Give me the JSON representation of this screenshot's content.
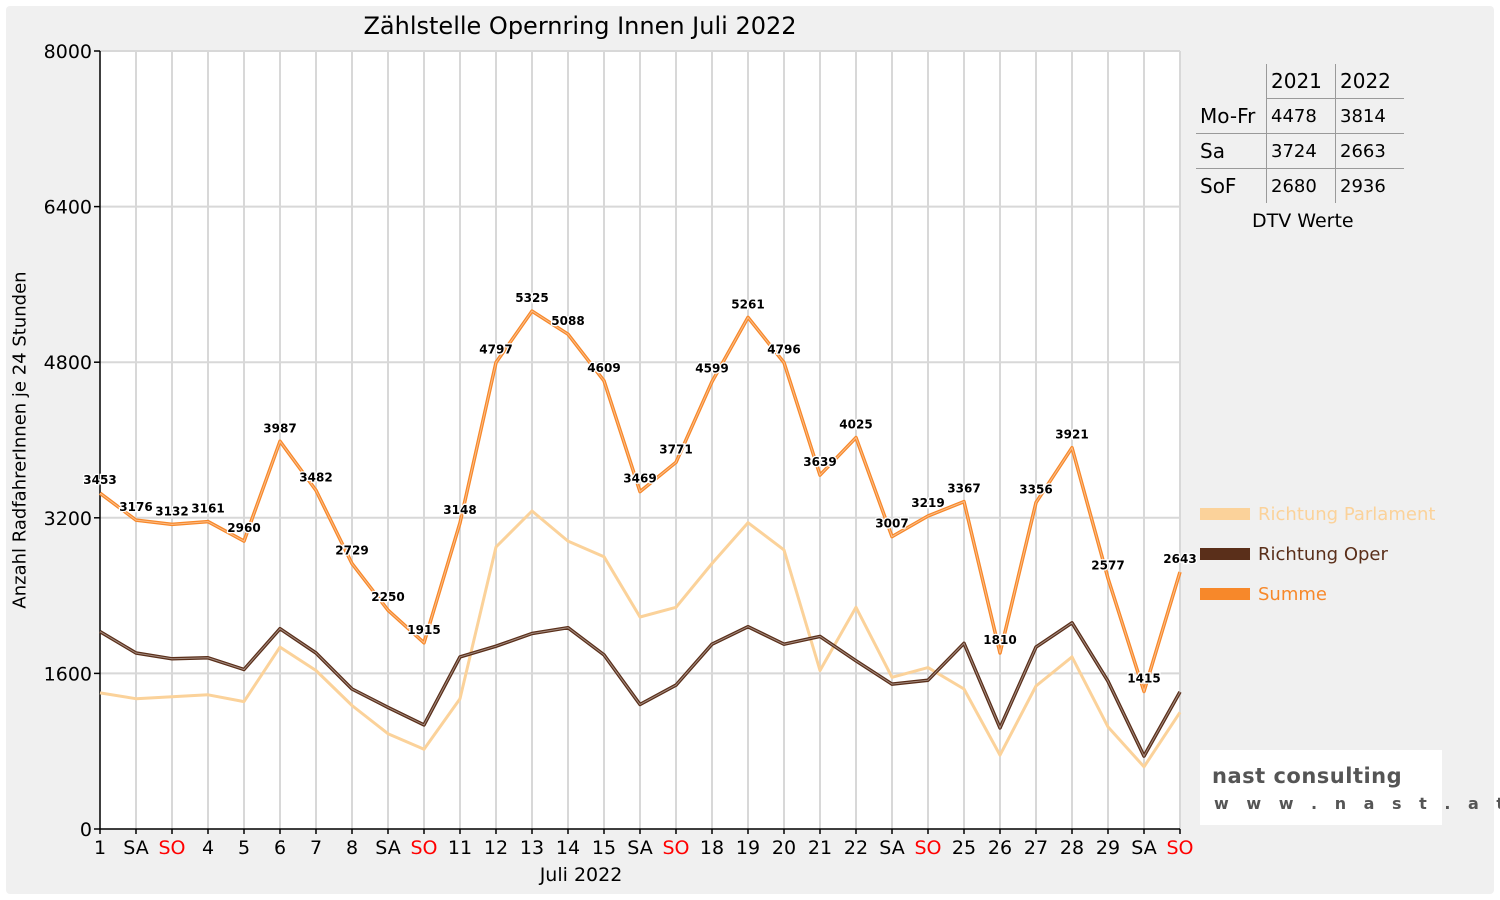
{
  "chart_data": {
    "type": "line",
    "title": "Zählstelle Opernring Innen Juli 2022",
    "xlabel": "Juli 2022",
    "ylabel": "Anzahl RadfahrerInnen je 24 Stunden",
    "ylim": [
      0,
      8000
    ],
    "yticks": [
      "0",
      "1600",
      "3200",
      "4800",
      "6400",
      "8000"
    ],
    "categories": [
      "1",
      "SA",
      "SO",
      "4",
      "5",
      "6",
      "7",
      "8",
      "SA",
      "SO",
      "11",
      "12",
      "13",
      "14",
      "15",
      "SA",
      "SO",
      "18",
      "19",
      "20",
      "21",
      "22",
      "SA",
      "SO",
      "25",
      "26",
      "27",
      "28",
      "29",
      "SA",
      "SO"
    ],
    "weekend_markers": {
      "SA": "#000000",
      "SO": "#ff0000"
    },
    "grid": true,
    "legend_position": "right",
    "series": [
      {
        "name": "Richtung Parlament",
        "color": "#fbd29a",
        "values": [
          1400,
          1340,
          1360,
          1380,
          1310,
          1870,
          1630,
          1270,
          980,
          820,
          1340,
          2900,
          3270,
          2960,
          2800,
          2180,
          2280,
          2730,
          3150,
          2870,
          1630,
          2280,
          1560,
          1660,
          1440,
          760,
          1470,
          1770,
          1050,
          640,
          1200
        ]
      },
      {
        "name": "Richtung Oper",
        "color": "#5a2f1a",
        "values": [
          2030,
          1810,
          1750,
          1760,
          1640,
          2060,
          1810,
          1440,
          1250,
          1070,
          1770,
          1880,
          2010,
          2070,
          1790,
          1280,
          1480,
          1900,
          2080,
          1900,
          1980,
          1730,
          1490,
          1530,
          1910,
          1040,
          1870,
          2120,
          1520,
          750,
          1410
        ]
      },
      {
        "name": "Summe",
        "color": "#f7882a",
        "values": [
          3453,
          3176,
          3132,
          3161,
          2960,
          3987,
          3482,
          2729,
          2250,
          1915,
          3148,
          4797,
          5325,
          5088,
          4609,
          3469,
          3771,
          4599,
          5261,
          4796,
          3639,
          4025,
          3007,
          3219,
          3367,
          1810,
          3356,
          3921,
          2577,
          1415,
          2643
        ],
        "labels": [
          "3453",
          "3176",
          "3132",
          "3161",
          "2960",
          "3987",
          "3482",
          "2729",
          "2250",
          "1915",
          "3148",
          "4797",
          "5325",
          "5088",
          "4609",
          "3469",
          "3771",
          "4599",
          "5261",
          "4796",
          "3639",
          "4025",
          "3007",
          "3219",
          "3367",
          "1810",
          "3356",
          "3921",
          "2577",
          "1415",
          "2643"
        ]
      }
    ]
  },
  "dtv_table": {
    "columns": [
      "2021",
      "2022"
    ],
    "rows": [
      {
        "label": "Mo-Fr",
        "v2021": "4478",
        "v2022": "3814"
      },
      {
        "label": "Sa",
        "v2021": "3724",
        "v2022": "2663"
      },
      {
        "label": "SoF",
        "v2021": "2680",
        "v2022": "2936"
      }
    ],
    "caption": "DTV Werte"
  },
  "logo": {
    "name": "nast consulting",
    "url": "w w w . n a s t . a t"
  }
}
